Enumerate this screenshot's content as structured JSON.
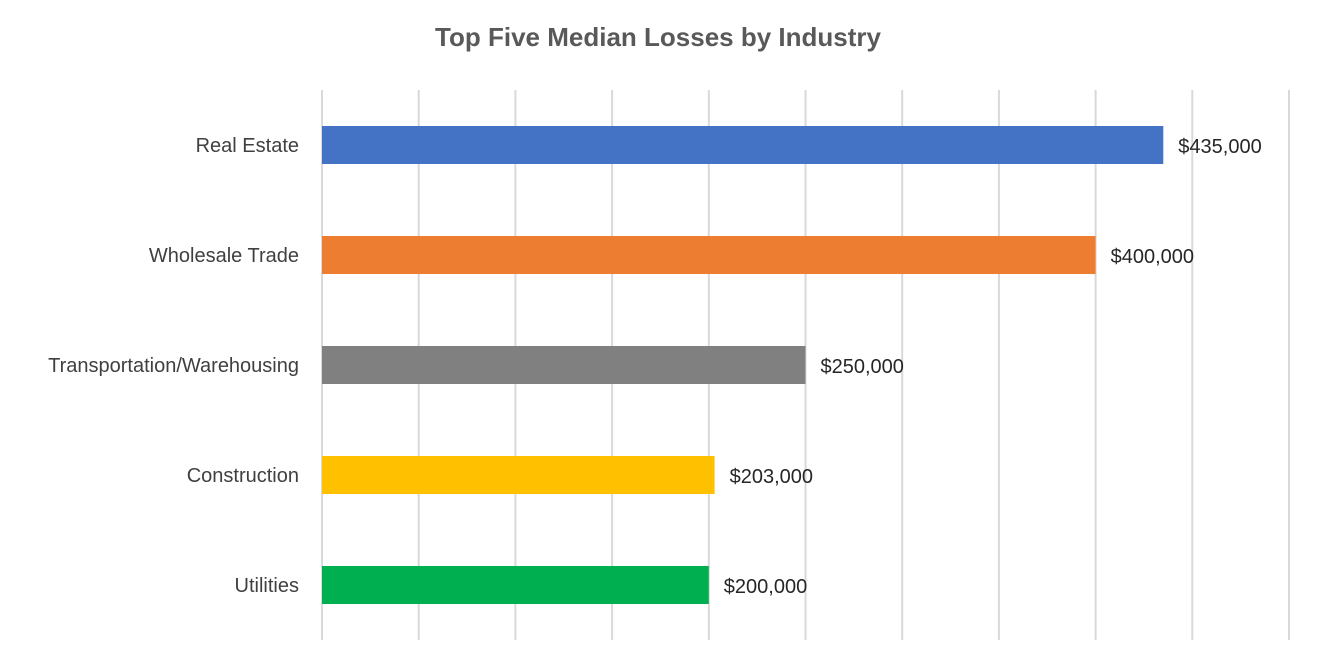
{
  "chart_data": {
    "type": "bar",
    "orientation": "horizontal",
    "title": "Top Five Median Losses by Industry",
    "categories": [
      "Real Estate",
      "Wholesale Trade",
      "Transportation/Warehousing",
      "Construction",
      "Utilities"
    ],
    "values": [
      435000,
      400000,
      250000,
      203000,
      200000
    ],
    "value_labels": [
      "$435,000",
      "$400,000",
      "$250,000",
      "$203,000",
      "$200,000"
    ],
    "colors": [
      "#4472C4",
      "#ED7D31",
      "#808080",
      "#FFC000",
      "#00B050"
    ],
    "xlim": [
      0,
      500000
    ],
    "gridlines": "vertical",
    "legend": "none"
  }
}
